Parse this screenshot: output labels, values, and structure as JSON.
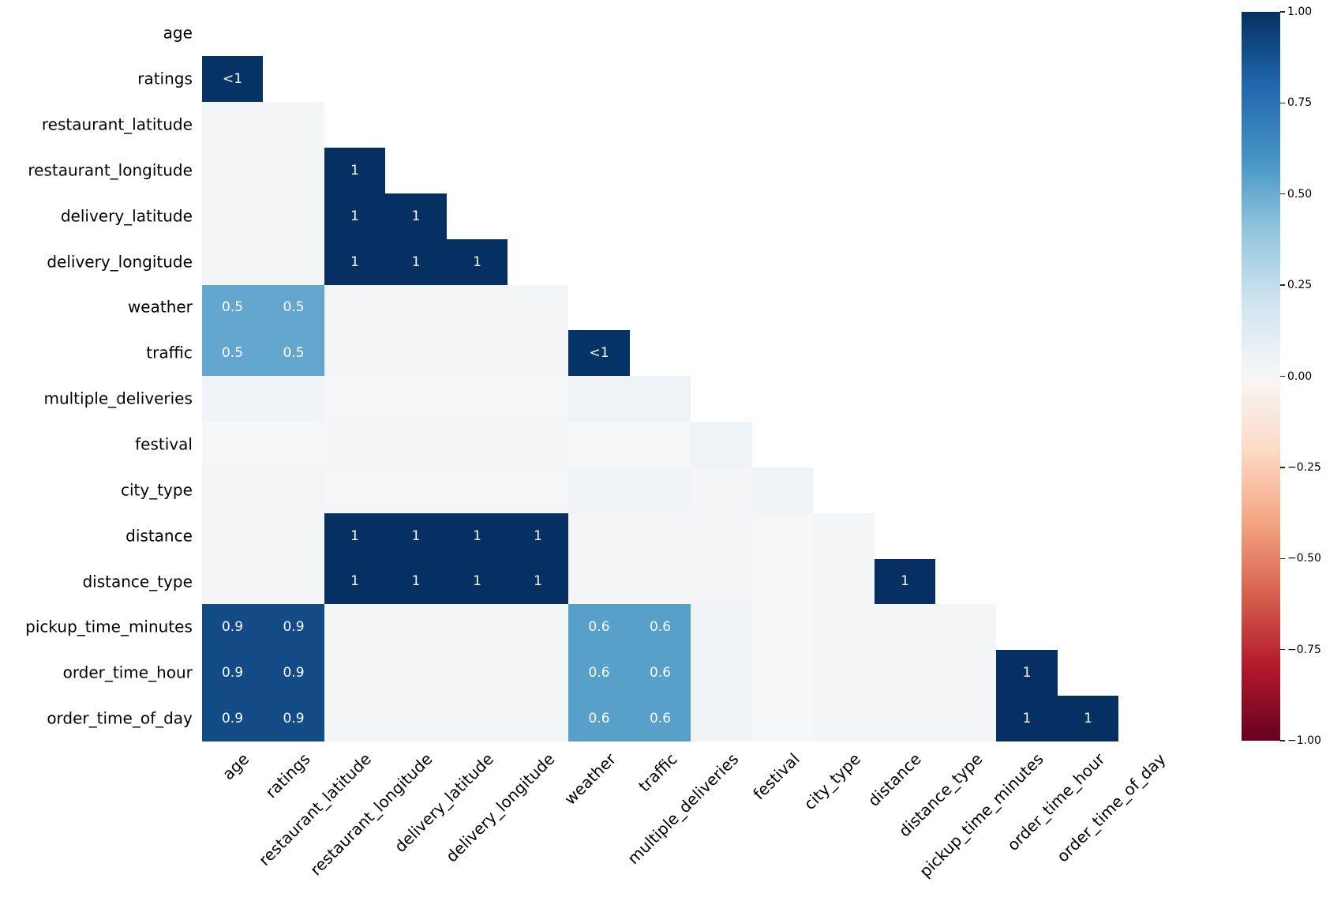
{
  "chart_data": {
    "type": "heatmap",
    "subtype": "correlation-matrix-lower-triangle",
    "title": "",
    "labels": [
      "age",
      "ratings",
      "restaurant_latitude",
      "restaurant_longitude",
      "delivery_latitude",
      "delivery_longitude",
      "weather",
      "traffic",
      "multiple_deliveries",
      "festival",
      "city_type",
      "distance",
      "distance_type",
      "pickup_time_minutes",
      "order_time_hour",
      "order_time_of_day"
    ],
    "vmin": -1,
    "vmax": 1,
    "colormap": "RdBu",
    "colormap_anchors": [
      [
        0.0,
        "#67001f"
      ],
      [
        0.1,
        "#b2182b"
      ],
      [
        0.2,
        "#d6604d"
      ],
      [
        0.3,
        "#f4a582"
      ],
      [
        0.4,
        "#fddbc7"
      ],
      [
        0.5,
        "#f7f7f7"
      ],
      [
        0.6,
        "#d1e5f0"
      ],
      [
        0.7,
        "#92c5de"
      ],
      [
        0.8,
        "#4393c3"
      ],
      [
        0.9,
        "#2166ac"
      ],
      [
        1.0,
        "#053061"
      ]
    ],
    "annotation_text_color": "#ffffff",
    "colorbar_ticks": [
      "1.00",
      "0.75",
      "0.50",
      "0.25",
      "0.00",
      "−0.25",
      "−0.50",
      "−0.75",
      "−1.00"
    ],
    "rows": [
      {
        "label": "age",
        "cells": []
      },
      {
        "label": "ratings",
        "cells": [
          [
            0.99,
            "<1"
          ]
        ]
      },
      {
        "label": "restaurant_latitude",
        "cells": [
          [
            0.02,
            ""
          ],
          [
            0.02,
            ""
          ]
        ]
      },
      {
        "label": "restaurant_longitude",
        "cells": [
          [
            0.02,
            ""
          ],
          [
            0.02,
            ""
          ],
          [
            1,
            "1"
          ]
        ]
      },
      {
        "label": "delivery_latitude",
        "cells": [
          [
            0.02,
            ""
          ],
          [
            0.02,
            ""
          ],
          [
            1,
            "1"
          ],
          [
            1,
            "1"
          ]
        ]
      },
      {
        "label": "delivery_longitude",
        "cells": [
          [
            0.02,
            ""
          ],
          [
            0.02,
            ""
          ],
          [
            1,
            "1"
          ],
          [
            1,
            "1"
          ],
          [
            1,
            "1"
          ]
        ]
      },
      {
        "label": "weather",
        "cells": [
          [
            0.52,
            "0.5"
          ],
          [
            0.52,
            "0.5"
          ],
          [
            0.02,
            ""
          ],
          [
            0.02,
            ""
          ],
          [
            0.02,
            ""
          ],
          [
            0.02,
            ""
          ]
        ]
      },
      {
        "label": "traffic",
        "cells": [
          [
            0.52,
            "0.5"
          ],
          [
            0.52,
            "0.5"
          ],
          [
            0.02,
            ""
          ],
          [
            0.02,
            ""
          ],
          [
            0.02,
            ""
          ],
          [
            0.02,
            ""
          ],
          [
            0.99,
            "<1"
          ]
        ]
      },
      {
        "label": "multiple_deliveries",
        "cells": [
          [
            0.03,
            ""
          ],
          [
            0.03,
            ""
          ],
          [
            0.01,
            ""
          ],
          [
            0.01,
            ""
          ],
          [
            0.01,
            ""
          ],
          [
            0.01,
            ""
          ],
          [
            0.04,
            ""
          ],
          [
            0.04,
            ""
          ]
        ]
      },
      {
        "label": "festival",
        "cells": [
          [
            0.01,
            ""
          ],
          [
            0.01,
            ""
          ],
          [
            0.02,
            ""
          ],
          [
            0.02,
            ""
          ],
          [
            0.02,
            ""
          ],
          [
            0.02,
            ""
          ],
          [
            0.01,
            ""
          ],
          [
            0.01,
            ""
          ],
          [
            0.05,
            ""
          ]
        ]
      },
      {
        "label": "city_type",
        "cells": [
          [
            0.02,
            ""
          ],
          [
            0.02,
            ""
          ],
          [
            0.01,
            ""
          ],
          [
            0.01,
            ""
          ],
          [
            0.01,
            ""
          ],
          [
            0.01,
            ""
          ],
          [
            0.03,
            ""
          ],
          [
            0.03,
            ""
          ],
          [
            0.02,
            ""
          ],
          [
            0.04,
            ""
          ]
        ]
      },
      {
        "label": "distance",
        "cells": [
          [
            0.02,
            ""
          ],
          [
            0.02,
            ""
          ],
          [
            1,
            "1"
          ],
          [
            1,
            "1"
          ],
          [
            1,
            "1"
          ],
          [
            1,
            "1"
          ],
          [
            0.02,
            ""
          ],
          [
            0.02,
            ""
          ],
          [
            0.02,
            ""
          ],
          [
            0.01,
            ""
          ],
          [
            0.02,
            ""
          ]
        ]
      },
      {
        "label": "distance_type",
        "cells": [
          [
            0.02,
            ""
          ],
          [
            0.02,
            ""
          ],
          [
            1,
            "1"
          ],
          [
            1,
            "1"
          ],
          [
            1,
            "1"
          ],
          [
            1,
            "1"
          ],
          [
            0.02,
            ""
          ],
          [
            0.02,
            ""
          ],
          [
            0.02,
            ""
          ],
          [
            0.01,
            ""
          ],
          [
            0.02,
            ""
          ],
          [
            1,
            "1"
          ]
        ]
      },
      {
        "label": "pickup_time_minutes",
        "cells": [
          [
            0.9,
            "0.9"
          ],
          [
            0.9,
            "0.9"
          ],
          [
            0.02,
            ""
          ],
          [
            0.02,
            ""
          ],
          [
            0.02,
            ""
          ],
          [
            0.02,
            ""
          ],
          [
            0.55,
            "0.6"
          ],
          [
            0.55,
            "0.6"
          ],
          [
            0.03,
            ""
          ],
          [
            0.01,
            ""
          ],
          [
            0.02,
            ""
          ],
          [
            0.02,
            ""
          ],
          [
            0.02,
            ""
          ]
        ]
      },
      {
        "label": "order_time_hour",
        "cells": [
          [
            0.9,
            "0.9"
          ],
          [
            0.9,
            "0.9"
          ],
          [
            0.02,
            ""
          ],
          [
            0.02,
            ""
          ],
          [
            0.02,
            ""
          ],
          [
            0.02,
            ""
          ],
          [
            0.55,
            "0.6"
          ],
          [
            0.55,
            "0.6"
          ],
          [
            0.03,
            ""
          ],
          [
            0.01,
            ""
          ],
          [
            0.02,
            ""
          ],
          [
            0.02,
            ""
          ],
          [
            0.02,
            ""
          ],
          [
            1,
            "1"
          ]
        ]
      },
      {
        "label": "order_time_of_day",
        "cells": [
          [
            0.9,
            "0.9"
          ],
          [
            0.9,
            "0.9"
          ],
          [
            0.02,
            ""
          ],
          [
            0.02,
            ""
          ],
          [
            0.02,
            ""
          ],
          [
            0.02,
            ""
          ],
          [
            0.55,
            "0.6"
          ],
          [
            0.55,
            "0.6"
          ],
          [
            0.03,
            ""
          ],
          [
            0.01,
            ""
          ],
          [
            0.02,
            ""
          ],
          [
            0.02,
            ""
          ],
          [
            0.02,
            ""
          ],
          [
            1,
            "1"
          ],
          [
            1,
            "1"
          ]
        ]
      }
    ]
  }
}
